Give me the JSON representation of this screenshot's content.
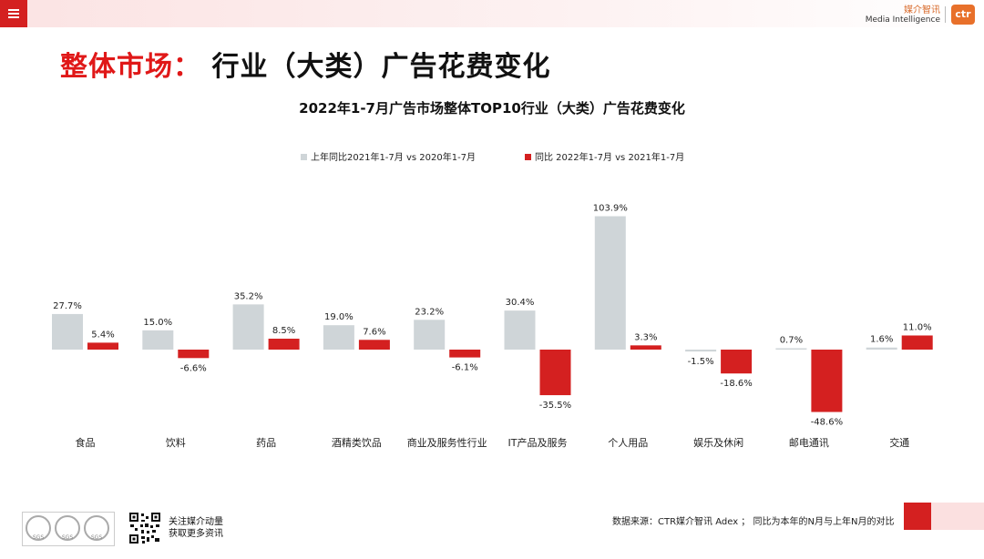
{
  "header": {
    "brand_cn": "媒介智讯",
    "brand_en": "Media Intelligence",
    "logo_text": "ctr"
  },
  "page_title": {
    "part1": "整体市场：",
    "part2": "行业（大类）广告花费变化"
  },
  "footer": {
    "qr_line1": "关注媒介动量",
    "qr_line2": "获取更多资讯",
    "source": "数据来源：CTR媒介智讯 Adex ；  同比为本年的N月与上年N月的对比",
    "badges": [
      "SGS",
      "SGS",
      "SGS"
    ]
  },
  "colors": {
    "accent_red": "#d42020",
    "series_gray": "#cfd5d8",
    "series_red": "#d42020"
  },
  "chart_data": {
    "type": "bar",
    "title": "2022年1-7月广告市场整体TOP10行业（大类）广告花费变化",
    "categories": [
      "食品",
      "饮料",
      "药品",
      "酒精类饮品",
      "商业及服务性行业",
      "IT产品及服务",
      "个人用品",
      "娱乐及休闲",
      "邮电通讯",
      "交通"
    ],
    "series": [
      {
        "name": "上年同比2021年1-7月  vs  2020年1-7月",
        "values": [
          27.7,
          15.0,
          35.2,
          19.0,
          23.2,
          30.4,
          103.9,
          -1.5,
          0.7,
          1.6
        ],
        "labels": [
          "27.7%",
          "15.0%",
          "35.2%",
          "19.0%",
          "23.2%",
          "30.4%",
          "103.9%",
          "-1.5%",
          "0.7%",
          "1.6%"
        ]
      },
      {
        "name": "同比 2022年1-7月  vs  2021年1-7月",
        "values": [
          5.4,
          -6.6,
          8.5,
          7.6,
          -6.1,
          -35.5,
          3.3,
          -18.6,
          -48.6,
          11.0
        ],
        "labels": [
          "5.4%",
          "-6.6%",
          "8.5%",
          "7.6%",
          "-6.1%",
          "-35.5%",
          "3.3%",
          "-18.6%",
          "-48.6%",
          "11.0%"
        ]
      }
    ],
    "ylim": [
      -50,
      110
    ],
    "legend": "top-center",
    "grid": false
  }
}
